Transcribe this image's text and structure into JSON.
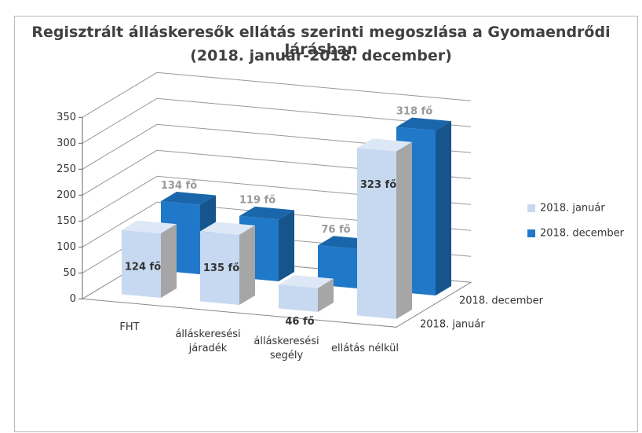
{
  "chart_data": {
    "type": "bar3d",
    "title": "Regisztrált álláskeresők ellátás szerinti megoszlása  a Gyomaendrődi Járásban",
    "subtitle": "(2018. január-2018. december)",
    "categories": [
      "FHT",
      "álláskeresési járadék",
      "álláskeresési segély",
      "ellátás nélkül"
    ],
    "series": [
      {
        "name": "2018. január",
        "color": "#c6d9f1",
        "values": [
          124,
          135,
          46,
          323
        ],
        "value_labels": [
          "124 fő",
          "135 fő",
          "46 fő",
          "323 fő"
        ]
      },
      {
        "name": "2018. december",
        "color": "#1f78c8",
        "values": [
          134,
          119,
          76,
          318
        ],
        "value_labels": [
          "134 fő",
          "119 fő",
          "76 fő",
          "318 fő"
        ]
      }
    ],
    "ylim": [
      0,
      350
    ],
    "yticks": [
      0,
      50,
      100,
      150,
      200,
      250,
      300,
      350
    ],
    "grid": true,
    "legend": "right"
  }
}
